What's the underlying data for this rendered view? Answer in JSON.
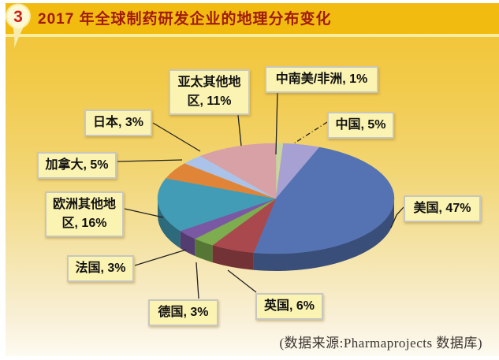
{
  "header": {
    "badge": "3",
    "title": "2017 年全球制药研发企业的地理分布变化"
  },
  "chart_data": {
    "type": "pie",
    "style": "3d",
    "title": "2017 年全球制药研发企业的地理分布变化",
    "unit": "%",
    "start_angle_deg": 0,
    "direction": "clockwise",
    "legend_position": "callout-labels",
    "slices": [
      {
        "label": "中南美/非洲",
        "value": 1,
        "color": "#c8d59c"
      },
      {
        "label": "中国",
        "value": 5,
        "color": "#a7a0d3"
      },
      {
        "label": "美国",
        "value": 47,
        "color": "#5573b3"
      },
      {
        "label": "英国",
        "value": 6,
        "color": "#a9494e"
      },
      {
        "label": "德国",
        "value": 3,
        "color": "#7ead50"
      },
      {
        "label": "法国",
        "value": 3,
        "color": "#7a58a4"
      },
      {
        "label": "欧洲其他地区",
        "value": 16,
        "color": "#429cb6"
      },
      {
        "label": "加拿大",
        "value": 5,
        "color": "#e08538"
      },
      {
        "label": "日本",
        "value": 3,
        "color": "#abc3e8"
      },
      {
        "label": "亚太其他地区",
        "value": 11,
        "color": "#d7a1a6"
      }
    ],
    "source": "(数据来源:Pharmaprojects 数据库)"
  }
}
